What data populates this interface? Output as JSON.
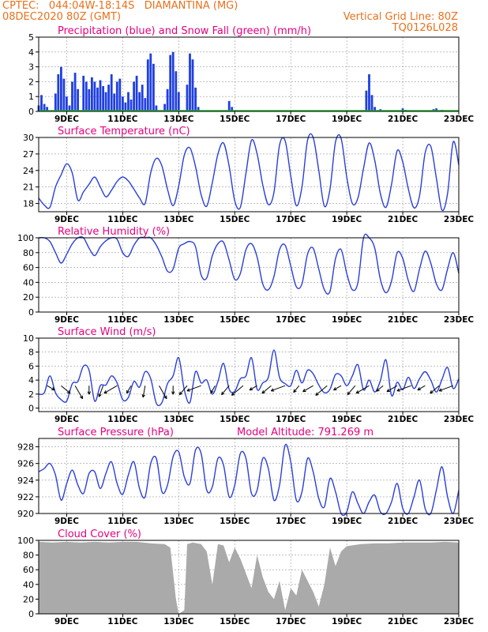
{
  "header": {
    "line1": "CPTEC:   044:04W-18:14S   DIAMANTINA (MG)",
    "line2": "08DEC2020 80Z (GMT)",
    "grid_note": "Vertical Grid Line: 80Z",
    "code": "TQ0126L028"
  },
  "colors": {
    "header": "#e8711c",
    "title": "#e6007e",
    "line": "#2b3fd9",
    "bar": "#1f3fe0",
    "snow": "#22bb33",
    "cloud": "#aaaaaa",
    "grid": "#999999"
  },
  "x_tick_labels": [
    "9DEC",
    "11DEC",
    "13DEC",
    "15DEC",
    "17DEC",
    "19DEC",
    "21DEC",
    "23DEC"
  ],
  "model_altitude": "Model Altitude: 791.269 m",
  "chart_data": [
    {
      "type": "bar",
      "title": "Precipitation (blue) and Snow Fall (green) (mm/h)",
      "x_unit": "day of Dec 2020",
      "xlim": [
        8.0,
        23.0
      ],
      "ylim": [
        0,
        5
      ],
      "yticks": [
        "0",
        "1",
        "2",
        "3",
        "4",
        "5"
      ],
      "series": [
        {
          "name": "Precipitation",
          "color": "#1f3fe0",
          "x": [
            8.0,
            8.1,
            8.2,
            8.3,
            8.6,
            8.7,
            8.8,
            8.9,
            9.0,
            9.1,
            9.2,
            9.3,
            9.4,
            9.6,
            9.7,
            9.8,
            9.9,
            10.0,
            10.1,
            10.2,
            10.3,
            10.4,
            10.5,
            10.6,
            10.7,
            10.8,
            10.9,
            11.0,
            11.1,
            11.2,
            11.3,
            11.4,
            11.5,
            11.6,
            11.7,
            11.8,
            11.9,
            12.0,
            12.1,
            12.2,
            12.5,
            12.6,
            12.7,
            12.8,
            12.9,
            13.0,
            13.3,
            13.4,
            13.5,
            13.6,
            13.7,
            14.8,
            14.9,
            19.7,
            19.8,
            19.9,
            20.0,
            20.2,
            21.0,
            21.1,
            22.1,
            22.2,
            22.4
          ],
          "values": [
            0.4,
            1.1,
            0.5,
            0.3,
            1.2,
            2.5,
            3.0,
            2.2,
            1.0,
            0.4,
            2.0,
            2.6,
            1.5,
            2.4,
            2.0,
            1.5,
            2.3,
            2.0,
            1.6,
            2.1,
            1.7,
            1.3,
            1.8,
            2.5,
            1.2,
            2.0,
            2.2,
            1.0,
            0.6,
            1.3,
            0.8,
            2.0,
            2.4,
            1.3,
            1.8,
            0.9,
            3.5,
            3.9,
            3.2,
            0.4,
            0.5,
            1.5,
            3.8,
            4.0,
            2.7,
            1.3,
            1.8,
            3.9,
            3.5,
            1.6,
            0.3,
            0.7,
            0.3,
            1.4,
            2.5,
            1.1,
            0.3,
            0.15,
            0.2,
            0.1,
            0.15,
            0.2,
            0.1
          ]
        },
        {
          "name": "Snow Fall",
          "color": "#22bb33",
          "x": [
            8.0,
            23.0
          ],
          "values": [
            0,
            0
          ]
        }
      ]
    },
    {
      "type": "line",
      "title": "Surface Temperature (nC)",
      "xlim": [
        8.0,
        23.0
      ],
      "ylim": [
        16.5,
        30
      ],
      "yticks": [
        "18",
        "21",
        "24",
        "27",
        "30"
      ],
      "series": [
        {
          "x": [
            8.0,
            8.2,
            8.4,
            8.6,
            8.8,
            9.0,
            9.2,
            9.4,
            9.6,
            9.8,
            10.0,
            10.2,
            10.4,
            10.6,
            10.8,
            11.0,
            11.2,
            11.4,
            11.6,
            11.8,
            12.0,
            12.2,
            12.4,
            12.6,
            12.8,
            13.0,
            13.2,
            13.4,
            13.6,
            13.8,
            14.0,
            14.2,
            14.4,
            14.6,
            14.8,
            15.0,
            15.2,
            15.4,
            15.6,
            15.8,
            16.0,
            16.2,
            16.4,
            16.6,
            16.8,
            17.0,
            17.2,
            17.4,
            17.6,
            17.8,
            18.0,
            18.2,
            18.4,
            18.6,
            18.8,
            19.0,
            19.2,
            19.4,
            19.6,
            19.8,
            20.0,
            20.2,
            20.4,
            20.6,
            20.8,
            21.0,
            21.2,
            21.4,
            21.6,
            21.8,
            22.0,
            22.2,
            22.4,
            22.6,
            22.8,
            23.0
          ],
          "values": [
            19.0,
            17.7,
            17.3,
            21.0,
            23.2,
            25.2,
            23.5,
            18.6,
            20.1,
            21.5,
            22.8,
            21.0,
            19.2,
            20.4,
            22.0,
            22.8,
            22.1,
            20.6,
            19.0,
            18.0,
            23.6,
            26.2,
            24.8,
            20.6,
            17.6,
            21.2,
            26.8,
            28.1,
            24.7,
            19.6,
            17.5,
            21.8,
            27.0,
            29.0,
            24.8,
            18.5,
            17.3,
            23.5,
            29.5,
            27.0,
            21.4,
            17.8,
            20.0,
            28.6,
            29.4,
            23.0,
            17.6,
            21.0,
            29.5,
            30.0,
            24.0,
            17.5,
            20.6,
            29.2,
            29.8,
            22.8,
            18.0,
            19.0,
            24.4,
            29.0,
            25.8,
            19.8,
            17.3,
            21.5,
            27.6,
            25.5,
            20.6,
            17.2,
            19.4,
            27.2,
            28.4,
            22.6,
            16.8,
            19.8,
            29.2,
            25.0
          ]
        }
      ]
    },
    {
      "type": "line",
      "title": "Relative Humidity (%)",
      "xlim": [
        8.0,
        23.0
      ],
      "ylim": [
        0,
        100
      ],
      "yticks": [
        "0",
        "20",
        "40",
        "60",
        "80",
        "100"
      ],
      "series": [
        {
          "x": [
            8.0,
            8.2,
            8.4,
            8.6,
            8.8,
            9.0,
            9.2,
            9.4,
            9.6,
            9.8,
            10.0,
            10.2,
            10.4,
            10.6,
            10.8,
            11.0,
            11.2,
            11.4,
            11.6,
            11.8,
            12.0,
            12.2,
            12.4,
            12.6,
            12.8,
            13.0,
            13.2,
            13.4,
            13.6,
            13.8,
            14.0,
            14.2,
            14.4,
            14.6,
            14.8,
            15.0,
            15.2,
            15.4,
            15.6,
            15.8,
            16.0,
            16.2,
            16.4,
            16.6,
            16.8,
            17.0,
            17.2,
            17.4,
            17.6,
            17.8,
            18.0,
            18.2,
            18.4,
            18.6,
            18.8,
            19.0,
            19.2,
            19.4,
            19.6,
            19.8,
            20.0,
            20.2,
            20.4,
            20.6,
            20.8,
            21.0,
            21.2,
            21.4,
            21.6,
            21.8,
            22.0,
            22.2,
            22.4,
            22.6,
            22.8,
            23.0
          ],
          "values": [
            100,
            100,
            95,
            80,
            66,
            78,
            92,
            100,
            100,
            86,
            76,
            88,
            96,
            100,
            98,
            80,
            75,
            90,
            100,
            100,
            100,
            90,
            74,
            55,
            58,
            86,
            92,
            95,
            88,
            50,
            46,
            76,
            92,
            94,
            70,
            44,
            52,
            84,
            92,
            74,
            38,
            30,
            48,
            84,
            90,
            62,
            34,
            38,
            78,
            86,
            58,
            30,
            28,
            72,
            84,
            52,
            30,
            40,
            100,
            100,
            86,
            44,
            26,
            42,
            80,
            72,
            42,
            28,
            58,
            82,
            66,
            38,
            30,
            58,
            80,
            52
          ]
        }
      ]
    },
    {
      "type": "line",
      "title": "Surface Wind (m/s)",
      "xlim": [
        8.0,
        23.0
      ],
      "ylim": [
        -0.5,
        10
      ],
      "yticks": [
        "0",
        "2",
        "4",
        "6",
        "8",
        "10"
      ],
      "series": [
        {
          "x": [
            8.0,
            8.2,
            8.4,
            8.6,
            8.8,
            9.0,
            9.2,
            9.4,
            9.6,
            9.8,
            10.0,
            10.2,
            10.4,
            10.6,
            10.8,
            11.0,
            11.2,
            11.4,
            11.6,
            11.8,
            12.0,
            12.2,
            12.4,
            12.6,
            12.8,
            13.0,
            13.2,
            13.4,
            13.6,
            13.8,
            14.0,
            14.2,
            14.4,
            14.6,
            14.8,
            15.0,
            15.2,
            15.4,
            15.6,
            15.8,
            16.0,
            16.2,
            16.4,
            16.6,
            16.8,
            17.0,
            17.2,
            17.4,
            17.6,
            17.8,
            18.0,
            18.2,
            18.4,
            18.6,
            18.8,
            19.0,
            19.2,
            19.4,
            19.6,
            19.8,
            20.0,
            20.2,
            20.4,
            20.6,
            20.8,
            21.0,
            21.2,
            21.4,
            21.6,
            21.8,
            22.0,
            22.2,
            22.4,
            22.6,
            22.8,
            23.0
          ],
          "values": [
            2.0,
            2.2,
            4.6,
            2.2,
            1.2,
            1.0,
            3.5,
            3.8,
            6.0,
            5.4,
            1.0,
            3.2,
            3.3,
            4.6,
            3.6,
            1.2,
            1.5,
            3.8,
            3.0,
            5.2,
            4.2,
            0.7,
            0.8,
            3.5,
            4.6,
            7.2,
            2.6,
            0.8,
            5.2,
            3.6,
            4.0,
            2.0,
            3.8,
            6.4,
            2.7,
            2.4,
            4.2,
            4.6,
            7.2,
            2.7,
            3.6,
            4.4,
            8.3,
            4.4,
            3.5,
            3.2,
            5.4,
            3.6,
            5.4,
            4.9,
            3.3,
            2.2,
            2.7,
            4.8,
            4.6,
            3.2,
            4.6,
            6.2,
            2.6,
            4.0,
            2.3,
            3.9,
            6.9,
            1.8,
            3.7,
            2.6,
            4.4,
            2.8,
            4.2,
            5.2,
            4.0,
            2.3,
            4.1,
            5.8,
            2.8,
            4.2
          ]
        }
      ]
    },
    {
      "type": "line",
      "title": "Surface Pressure (hPa)",
      "xlim": [
        8.0,
        23.0
      ],
      "ylim": [
        920,
        929
      ],
      "yticks": [
        "920",
        "922",
        "924",
        "926",
        "928"
      ],
      "series": [
        {
          "x": [
            8.0,
            8.2,
            8.4,
            8.6,
            8.8,
            9.0,
            9.2,
            9.4,
            9.6,
            9.8,
            10.0,
            10.2,
            10.4,
            10.6,
            10.8,
            11.0,
            11.2,
            11.4,
            11.6,
            11.8,
            12.0,
            12.2,
            12.4,
            12.6,
            12.8,
            13.0,
            13.2,
            13.4,
            13.6,
            13.8,
            14.0,
            14.2,
            14.4,
            14.6,
            14.8,
            15.0,
            15.2,
            15.4,
            15.6,
            15.8,
            16.0,
            16.2,
            16.4,
            16.6,
            16.8,
            17.0,
            17.2,
            17.4,
            17.6,
            17.8,
            18.0,
            18.2,
            18.4,
            18.6,
            18.8,
            19.0,
            19.2,
            19.4,
            19.6,
            19.8,
            20.0,
            20.2,
            20.4,
            20.6,
            20.8,
            21.0,
            21.2,
            21.4,
            21.6,
            21.8,
            22.0,
            22.2,
            22.4,
            22.6,
            22.8,
            23.0
          ],
          "values": [
            925.0,
            925.4,
            926.0,
            924.6,
            921.6,
            923.6,
            925.2,
            923.4,
            922.4,
            924.8,
            925.0,
            923.0,
            924.8,
            926.2,
            923.6,
            922.3,
            924.6,
            926.2,
            923.0,
            922.0,
            926.0,
            926.6,
            922.6,
            923.4,
            926.8,
            927.4,
            924.4,
            923.6,
            927.6,
            927.2,
            922.8,
            923.2,
            926.6,
            925.8,
            922.0,
            923.4,
            927.2,
            926.6,
            922.4,
            922.8,
            926.6,
            925.4,
            921.6,
            923.4,
            928.2,
            926.2,
            921.6,
            922.6,
            926.6,
            925.0,
            921.8,
            920.8,
            924.2,
            922.6,
            920.0,
            920.2,
            922.6,
            921.2,
            919.6,
            921.4,
            922.2,
            920.2,
            919.0,
            921.4,
            923.6,
            920.6,
            919.6,
            922.0,
            924.0,
            920.6,
            919.5,
            922.8,
            925.6,
            922.0,
            919.6,
            922.8
          ]
        }
      ]
    },
    {
      "type": "area",
      "title": "Cloud Cover (%)",
      "xlim": [
        8.0,
        23.0
      ],
      "ylim": [
        0,
        100
      ],
      "yticks": [
        "0",
        "20",
        "40",
        "60",
        "80",
        "100"
      ],
      "series": [
        {
          "x": [
            8.0,
            8.5,
            9.0,
            9.5,
            10.0,
            10.5,
            11.0,
            11.5,
            12.0,
            12.5,
            12.7,
            12.9,
            13.0,
            13.2,
            13.3,
            13.5,
            13.8,
            14.0,
            14.2,
            14.4,
            14.6,
            14.8,
            15.0,
            15.2,
            15.4,
            15.6,
            15.8,
            16.0,
            16.2,
            16.4,
            16.6,
            16.8,
            17.0,
            17.2,
            17.4,
            17.6,
            17.8,
            18.0,
            18.2,
            18.4,
            18.6,
            18.8,
            19.0,
            19.5,
            20.0,
            20.5,
            21.0,
            21.5,
            22.0,
            22.5,
            23.0
          ],
          "values": [
            98,
            97,
            98,
            97,
            98,
            97,
            98,
            98,
            96,
            95,
            90,
            20,
            0,
            5,
            95,
            97,
            95,
            85,
            40,
            95,
            93,
            70,
            90,
            75,
            55,
            35,
            80,
            50,
            30,
            20,
            45,
            5,
            35,
            25,
            60,
            45,
            30,
            10,
            40,
            90,
            65,
            85,
            92,
            95,
            96,
            96,
            97,
            97,
            97,
            98,
            97
          ]
        }
      ]
    }
  ]
}
